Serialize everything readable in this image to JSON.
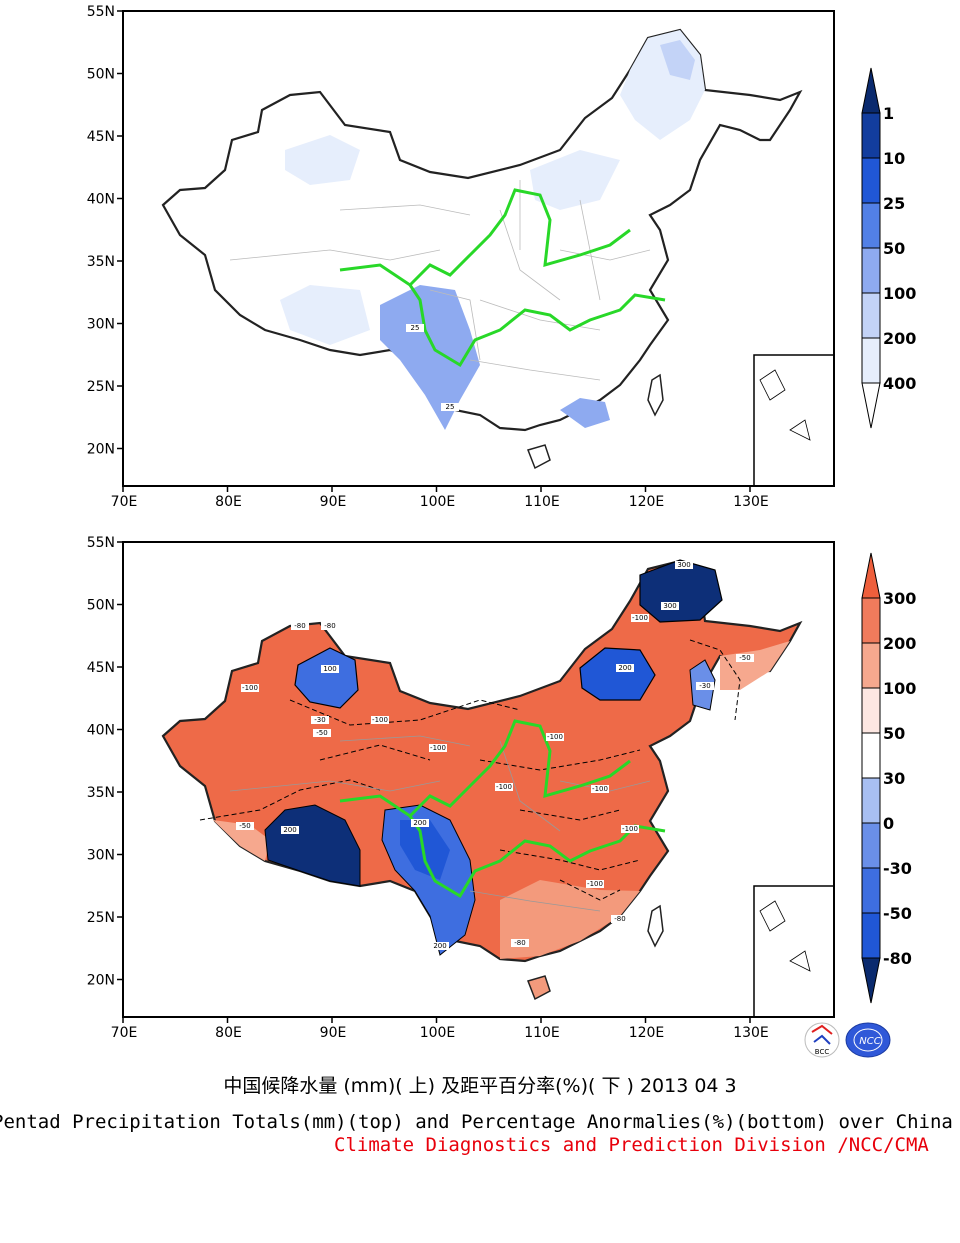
{
  "map_top": {
    "lat_labels": [
      "55N",
      "50N",
      "45N",
      "40N",
      "35N",
      "30N",
      "25N",
      "20N"
    ],
    "lon_labels": [
      "70E",
      "80E",
      "90E",
      "100E",
      "110E",
      "120E",
      "130E"
    ],
    "colorbar": {
      "levels": [
        "1",
        "10",
        "25",
        "50",
        "100",
        "200",
        "400"
      ],
      "colors": [
        "#ffffff",
        "#e6eefc",
        "#c3d3f7",
        "#8eaaf0",
        "#5280e6",
        "#2057d6",
        "#123d9e",
        "#0a2a6e"
      ]
    },
    "contour_labels": [
      "25",
      "25"
    ]
  },
  "map_bottom": {
    "lat_labels": [
      "55N",
      "50N",
      "45N",
      "40N",
      "35N",
      "30N",
      "25N",
      "20N"
    ],
    "lon_labels": [
      "70E",
      "80E",
      "90E",
      "100E",
      "110E",
      "120E",
      "130E"
    ],
    "colorbar": {
      "levels": [
        "300",
        "200",
        "100",
        "50",
        "30",
        "0",
        "-30",
        "-50",
        "-80"
      ],
      "colors": [
        "#0a2a6e",
        "#2057d6",
        "#3e6ee0",
        "#6a8fe8",
        "#a8bff2",
        "#ffffff",
        "#fde7e2",
        "#f6a88e",
        "#f07b5c",
        "#ee5f3c"
      ]
    },
    "contour_labels": [
      "-100",
      "-80",
      "-50",
      "-30",
      "100",
      "200",
      "300"
    ]
  },
  "titles": {
    "chinese": "中国候降水量 (mm)( 上) 及距平百分率(%)( 下 ) 2013 04 3",
    "english": "Pentad Precipitation Totals(mm)(top) and Percentage Anormalies(%)(bottom) over China",
    "org": "Climate Diagnostics and Prediction Division /NCC/CMA"
  },
  "logos": {
    "left": "BCC",
    "right": "NCC"
  }
}
